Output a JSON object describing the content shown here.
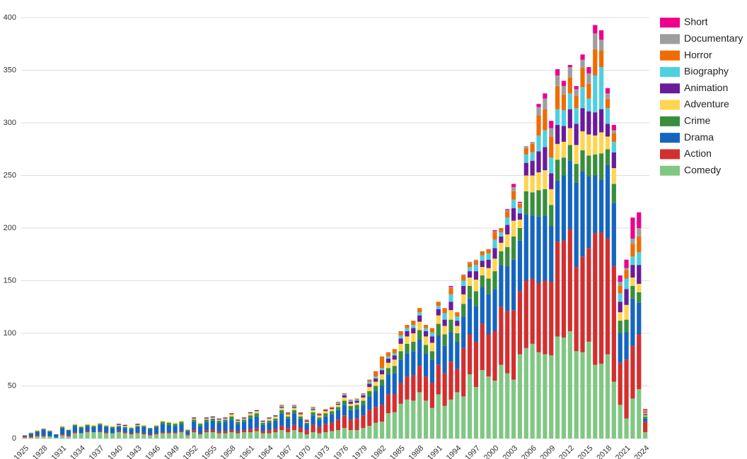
{
  "chart_data": {
    "type": "stacked_bar",
    "categories": [
      "1925",
      null,
      null,
      "1928",
      null,
      null,
      "1931",
      null,
      null,
      "1934",
      null,
      null,
      "1937",
      null,
      null,
      "1940",
      null,
      null,
      "1943",
      null,
      null,
      "1946",
      null,
      null,
      "1949",
      null,
      null,
      "1952",
      null,
      null,
      "1955",
      null,
      null,
      "1958",
      null,
      null,
      "1961",
      null,
      null,
      "1964",
      null,
      null,
      "1967",
      null,
      null,
      "1970",
      null,
      null,
      "1973",
      null,
      null,
      "1976",
      null,
      null,
      "1979",
      null,
      null,
      "1982",
      null,
      null,
      "1985",
      null,
      null,
      "1988",
      null,
      null,
      "1991",
      null,
      null,
      "1994",
      null,
      null,
      "1997",
      null,
      null,
      "2000",
      null,
      null,
      "2003",
      null,
      null,
      "2006",
      null,
      null,
      "2009",
      null,
      null,
      "2012",
      null,
      null,
      "2015",
      null,
      null,
      "2018",
      null,
      null,
      "2021",
      null,
      null,
      "2024"
    ],
    "series": [
      {
        "name": "Comedy",
        "color": "#81c784",
        "values": [
          1,
          1,
          2,
          2,
          2,
          1,
          3,
          2,
          5,
          5,
          6,
          6,
          6,
          5,
          5,
          6,
          5,
          4,
          5,
          4,
          3,
          4,
          5,
          5,
          5,
          6,
          3,
          6,
          4,
          6,
          6,
          5,
          5,
          6,
          5,
          6,
          6,
          7,
          5,
          5,
          6,
          8,
          6,
          8,
          6,
          4,
          6,
          5,
          6,
          7,
          8,
          10,
          8,
          8,
          10,
          12,
          15,
          16,
          24,
          25,
          33,
          37,
          36,
          44,
          36,
          29,
          42,
          31,
          37,
          44,
          40,
          61,
          49,
          65,
          59,
          55,
          70,
          62,
          56,
          80,
          86,
          90,
          82,
          80,
          79,
          97,
          96,
          102,
          83,
          82,
          92,
          70,
          71,
          80,
          54,
          32,
          19,
          38,
          47,
          6
        ]
      },
      {
        "name": "Action",
        "color": "#d32f2f",
        "values": [
          1,
          1,
          1,
          1,
          0,
          0,
          1,
          1,
          1,
          0,
          1,
          0,
          1,
          1,
          0,
          1,
          1,
          1,
          1,
          1,
          1,
          1,
          1,
          1,
          1,
          1,
          1,
          2,
          1,
          2,
          2,
          2,
          2,
          2,
          2,
          2,
          3,
          3,
          2,
          3,
          3,
          4,
          4,
          5,
          4,
          4,
          7,
          6,
          8,
          8,
          10,
          12,
          10,
          11,
          12,
          15,
          15,
          16,
          18,
          17,
          20,
          22,
          24,
          25,
          23,
          24,
          28,
          31,
          36,
          22,
          46,
          38,
          43,
          44,
          40,
          47,
          55,
          59,
          66,
          60,
          64,
          62,
          66,
          70,
          70,
          90,
          92,
          97,
          80,
          91,
          89,
          125,
          125,
          110,
          110,
          40,
          56,
          50,
          52,
          10
        ]
      },
      {
        "name": "Drama",
        "color": "#1565c0",
        "values": [
          1,
          3,
          4,
          6,
          5,
          3,
          6,
          5,
          6,
          5,
          5,
          5,
          6,
          5,
          5,
          4,
          4,
          4,
          5,
          6,
          5,
          6,
          8,
          7,
          6,
          7,
          3,
          8,
          7,
          8,
          9,
          8,
          9,
          10,
          7,
          8,
          10,
          11,
          6,
          7,
          8,
          12,
          9,
          11,
          9,
          6,
          9,
          7,
          7,
          8,
          9,
          10,
          9,
          9,
          10,
          13,
          15,
          18,
          19,
          20,
          22,
          22,
          23,
          25,
          22,
          22,
          28,
          26,
          28,
          26,
          30,
          34,
          34,
          35,
          38,
          40,
          40,
          43,
          48,
          48,
          63,
          60,
          63,
          62,
          53,
          58,
          62,
          65,
          80,
          81,
          68,
          55,
          50,
          70,
          60,
          28,
          26,
          45,
          30,
          3
        ]
      },
      {
        "name": "Crime",
        "color": "#388e3c",
        "values": [
          0,
          0,
          0,
          0,
          0,
          0,
          1,
          0,
          1,
          1,
          1,
          1,
          1,
          1,
          1,
          1,
          1,
          1,
          1,
          1,
          1,
          1,
          2,
          2,
          2,
          2,
          1,
          2,
          2,
          2,
          2,
          2,
          2,
          3,
          2,
          2,
          3,
          3,
          2,
          2,
          2,
          3,
          2,
          3,
          2,
          1,
          3,
          2,
          3,
          3,
          3,
          4,
          4,
          4,
          4,
          5,
          5,
          6,
          6,
          7,
          8,
          9,
          9,
          9,
          8,
          8,
          11,
          11,
          12,
          8,
          12,
          12,
          14,
          11,
          15,
          17,
          13,
          18,
          22,
          12,
          22,
          22,
          25,
          25,
          20,
          20,
          17,
          15,
          18,
          20,
          20,
          20,
          25,
          15,
          18,
          12,
          12,
          12,
          10,
          2
        ]
      },
      {
        "name": "Adventure",
        "color": "#ffd54f",
        "values": [
          0,
          1,
          1,
          1,
          1,
          0,
          1,
          1,
          1,
          1,
          1,
          1,
          1,
          1,
          1,
          1,
          1,
          1,
          1,
          1,
          0,
          1,
          1,
          1,
          1,
          1,
          1,
          1,
          1,
          1,
          1,
          1,
          1,
          2,
          1,
          1,
          2,
          2,
          1,
          2,
          2,
          2,
          2,
          2,
          2,
          1,
          2,
          2,
          2,
          2,
          2,
          3,
          2,
          2,
          3,
          4,
          4,
          5,
          5,
          6,
          7,
          7,
          8,
          8,
          8,
          8,
          8,
          8,
          9,
          7,
          9,
          8,
          11,
          8,
          10,
          12,
          8,
          12,
          15,
          8,
          15,
          16,
          17,
          18,
          15,
          15,
          15,
          16,
          18,
          18,
          20,
          18,
          20,
          12,
          15,
          8,
          14,
          8,
          8,
          1
        ]
      },
      {
        "name": "Animation",
        "color": "#6a1b9a",
        "values": [
          0,
          0,
          0,
          0,
          0,
          0,
          0,
          0,
          0,
          0,
          0,
          0,
          0,
          0,
          0,
          1,
          1,
          0,
          1,
          0,
          0,
          0,
          0,
          0,
          0,
          0,
          0,
          1,
          0,
          1,
          1,
          1,
          1,
          1,
          1,
          1,
          1,
          1,
          1,
          1,
          1,
          1,
          1,
          1,
          1,
          1,
          1,
          1,
          1,
          1,
          1,
          2,
          2,
          2,
          2,
          3,
          3,
          4,
          4,
          4,
          5,
          5,
          5,
          6,
          5,
          6,
          6,
          6,
          8,
          5,
          8,
          6,
          8,
          6,
          8,
          10,
          6,
          9,
          12,
          6,
          12,
          14,
          20,
          22,
          15,
          18,
          15,
          18,
          20,
          22,
          22,
          22,
          22,
          12,
          15,
          10,
          15,
          12,
          18,
          1
        ]
      },
      {
        "name": "Biography",
        "color": "#4dd0e1",
        "values": [
          0,
          0,
          0,
          0,
          0,
          0,
          0,
          0,
          0,
          0,
          0,
          0,
          0,
          0,
          0,
          0,
          0,
          0,
          0,
          0,
          0,
          0,
          0,
          0,
          0,
          0,
          0,
          0,
          0,
          0,
          0,
          0,
          0,
          0,
          0,
          0,
          0,
          0,
          0,
          0,
          0,
          1,
          0,
          1,
          0,
          0,
          1,
          0,
          0,
          0,
          1,
          1,
          1,
          1,
          1,
          2,
          2,
          2,
          2,
          2,
          3,
          3,
          3,
          3,
          3,
          4,
          3,
          6,
          7,
          4,
          5,
          4,
          6,
          5,
          6,
          8,
          4,
          7,
          8,
          5,
          8,
          8,
          15,
          16,
          15,
          15,
          15,
          15,
          15,
          20,
          12,
          35,
          40,
          15,
          10,
          8,
          10,
          8,
          12,
          1
        ]
      },
      {
        "name": "Horror",
        "color": "#ef6c00",
        "values": [
          0,
          0,
          0,
          0,
          0,
          0,
          0,
          0,
          0,
          0,
          0,
          0,
          0,
          0,
          0,
          0,
          0,
          0,
          0,
          0,
          0,
          0,
          0,
          0,
          0,
          0,
          0,
          0,
          0,
          0,
          0,
          0,
          0,
          0,
          0,
          0,
          0,
          0,
          0,
          0,
          0,
          1,
          1,
          1,
          1,
          1,
          1,
          1,
          1,
          1,
          1,
          1,
          1,
          1,
          1,
          2,
          5,
          11,
          4,
          4,
          4,
          3,
          4,
          4,
          3,
          4,
          4,
          5,
          6,
          4,
          5,
          4,
          4,
          4,
          4,
          7,
          4,
          6,
          8,
          4,
          6,
          8,
          19,
          20,
          20,
          22,
          15,
          15,
          12,
          18,
          14,
          25,
          16,
          9,
          8,
          7,
          8,
          12,
          15,
          2
        ]
      },
      {
        "name": "Documentary",
        "color": "#9e9e9e",
        "values": [
          0,
          0,
          0,
          0,
          0,
          0,
          0,
          0,
          0,
          0,
          0,
          0,
          0,
          0,
          0,
          0,
          0,
          0,
          0,
          0,
          0,
          0,
          0,
          0,
          0,
          0,
          0,
          0,
          0,
          0,
          0,
          0,
          0,
          0,
          0,
          0,
          0,
          0,
          0,
          0,
          0,
          0,
          0,
          0,
          0,
          0,
          0,
          0,
          0,
          0,
          0,
          0,
          0,
          0,
          0,
          0,
          0,
          0,
          0,
          0,
          0,
          0,
          0,
          0,
          0,
          0,
          0,
          0,
          1,
          0,
          1,
          1,
          1,
          0,
          0,
          1,
          0,
          1,
          4,
          1,
          2,
          2,
          8,
          10,
          8,
          10,
          8,
          10,
          6,
          8,
          10,
          15,
          10,
          5,
          3,
          4,
          2,
          5,
          8,
          1
        ]
      },
      {
        "name": "Short",
        "color": "#ec008c",
        "values": [
          0,
          0,
          0,
          0,
          0,
          0,
          0,
          0,
          0,
          0,
          0,
          0,
          0,
          0,
          0,
          0,
          0,
          0,
          0,
          0,
          0,
          0,
          0,
          0,
          0,
          0,
          0,
          0,
          0,
          0,
          0,
          0,
          0,
          0,
          0,
          0,
          0,
          0,
          0,
          0,
          0,
          0,
          0,
          0,
          0,
          0,
          0,
          0,
          0,
          0,
          0,
          0,
          0,
          0,
          0,
          0,
          0,
          0,
          0,
          0,
          0,
          0,
          0,
          0,
          0,
          0,
          0,
          0,
          1,
          0,
          0,
          0,
          0,
          0,
          0,
          1,
          0,
          1,
          3,
          1,
          0,
          0,
          3,
          5,
          7,
          6,
          5,
          2,
          3,
          5,
          6,
          8,
          9,
          5,
          5,
          6,
          8,
          20,
          15,
          1
        ]
      }
    ],
    "ylim": [
      0,
      400
    ],
    "yticks": [
      0,
      50,
      100,
      150,
      200,
      250,
      300,
      350,
      400
    ],
    "grid": true,
    "legend": "right"
  }
}
